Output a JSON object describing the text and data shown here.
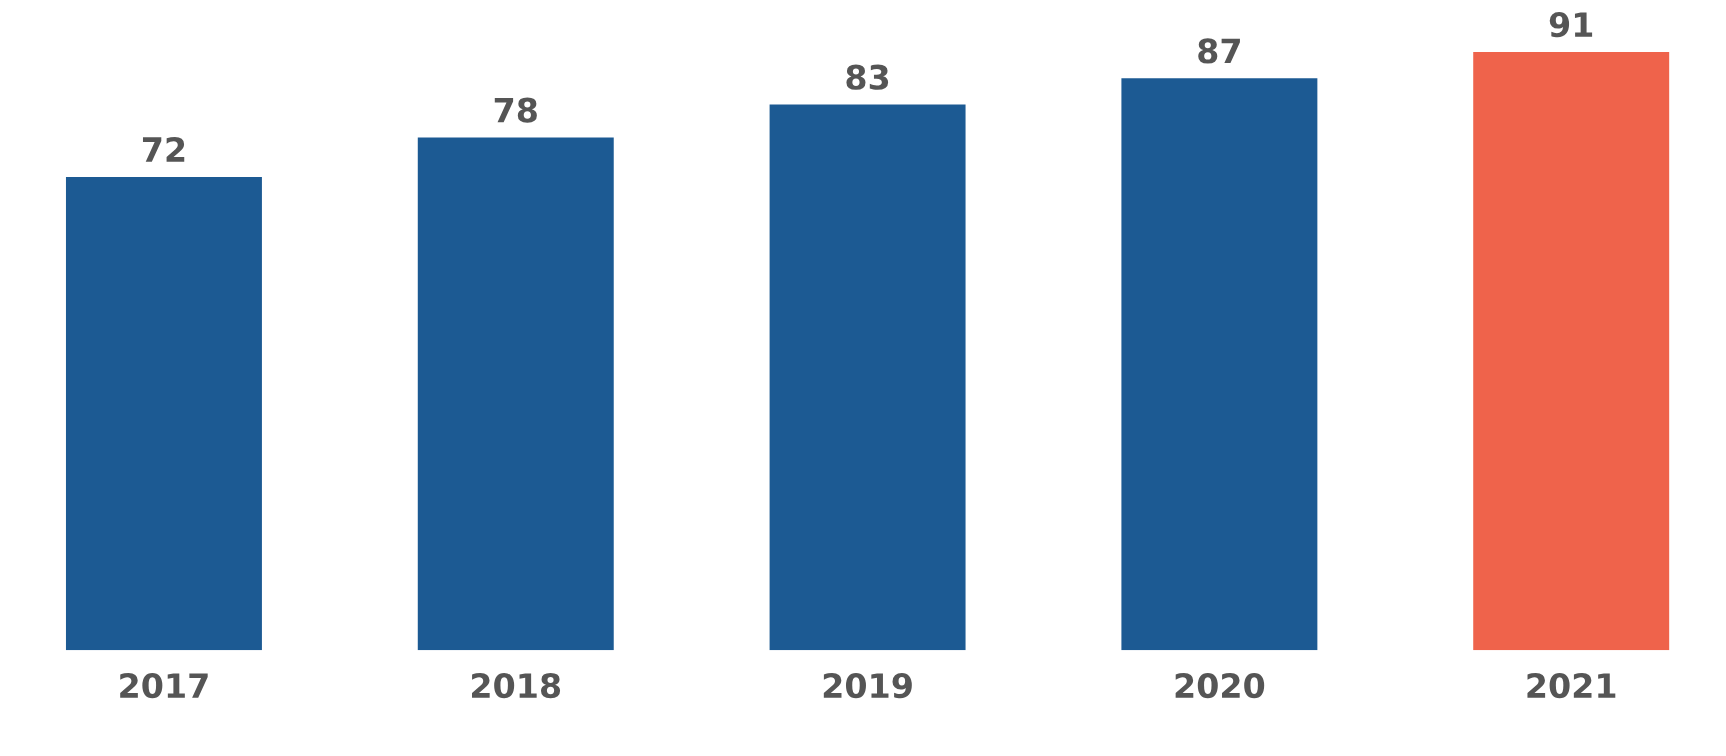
{
  "chart_data": {
    "type": "bar",
    "categories": [
      "2017",
      "2018",
      "2019",
      "2020",
      "2021"
    ],
    "values": [
      72,
      78,
      83,
      87,
      91
    ],
    "colors": [
      "#1c5a93",
      "#1c5a93",
      "#1c5a93",
      "#1c5a93",
      "#ef634b"
    ],
    "data_labels": true,
    "grid": false,
    "legend": false
  }
}
